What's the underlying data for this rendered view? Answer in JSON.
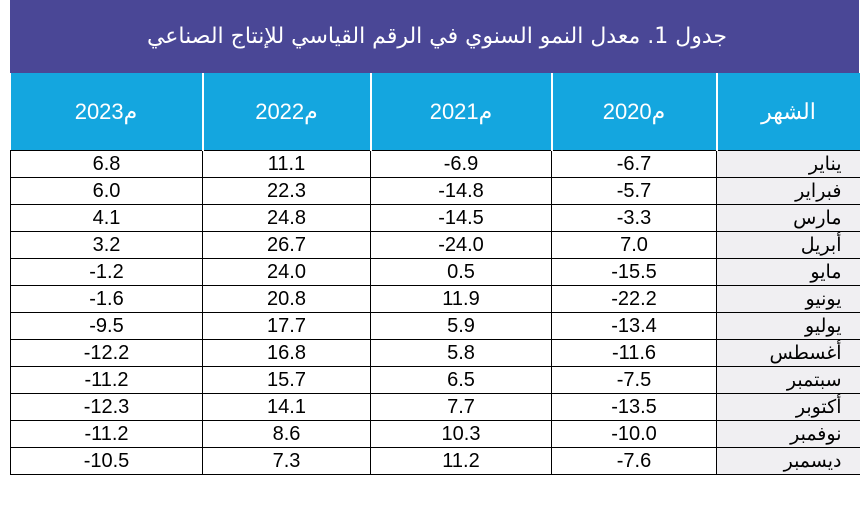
{
  "title": "جدول 1. معدل النمو السنوي في الرقم القياسي للإنتاج الصناعي",
  "header": {
    "y2023": "2023م",
    "y2022": "2022م",
    "y2021": "2021م",
    "y2020": "2020م",
    "month": "الشهر"
  },
  "rows": [
    {
      "month": "يناير",
      "y2020": "-6.7",
      "y2021": "-6.9",
      "y2022": "11.1",
      "y2023": "6.8"
    },
    {
      "month": "فبراير",
      "y2020": "-5.7",
      "y2021": "-14.8",
      "y2022": "22.3",
      "y2023": "6.0"
    },
    {
      "month": "مارس",
      "y2020": "-3.3",
      "y2021": "-14.5",
      "y2022": "24.8",
      "y2023": "4.1"
    },
    {
      "month": "أبريل",
      "y2020": "7.0",
      "y2021": "-24.0",
      "y2022": "26.7",
      "y2023": "3.2"
    },
    {
      "month": "مايو",
      "y2020": "-15.5",
      "y2021": "0.5",
      "y2022": "24.0",
      "y2023": "-1.2"
    },
    {
      "month": "يونيو",
      "y2020": "-22.2",
      "y2021": "11.9",
      "y2022": "20.8",
      "y2023": "-1.6"
    },
    {
      "month": "يوليو",
      "y2020": "-13.4",
      "y2021": "5.9",
      "y2022": "17.7",
      "y2023": "-9.5"
    },
    {
      "month": "أغسطس",
      "y2020": "-11.6",
      "y2021": "5.8",
      "y2022": "16.8",
      "y2023": "-12.2"
    },
    {
      "month": "سبتمبر",
      "y2020": "-7.5",
      "y2021": "6.5",
      "y2022": "15.7",
      "y2023": "-11.2"
    },
    {
      "month": "أكتوبر",
      "y2020": "-13.5",
      "y2021": "7.7",
      "y2022": "14.1",
      "y2023": "-12.3"
    },
    {
      "month": "نوفمبر",
      "y2020": "-10.0",
      "y2021": "10.3",
      "y2022": "8.6",
      "y2023": "-11.2"
    },
    {
      "month": "ديسمبر",
      "y2020": "-7.6",
      "y2021": "11.2",
      "y2022": "7.3",
      "y2023": "-10.5"
    }
  ],
  "colors": {
    "title_bg": "#4a4796",
    "header_bg": "#14a6df",
    "month_bg": "#f0eff2"
  }
}
